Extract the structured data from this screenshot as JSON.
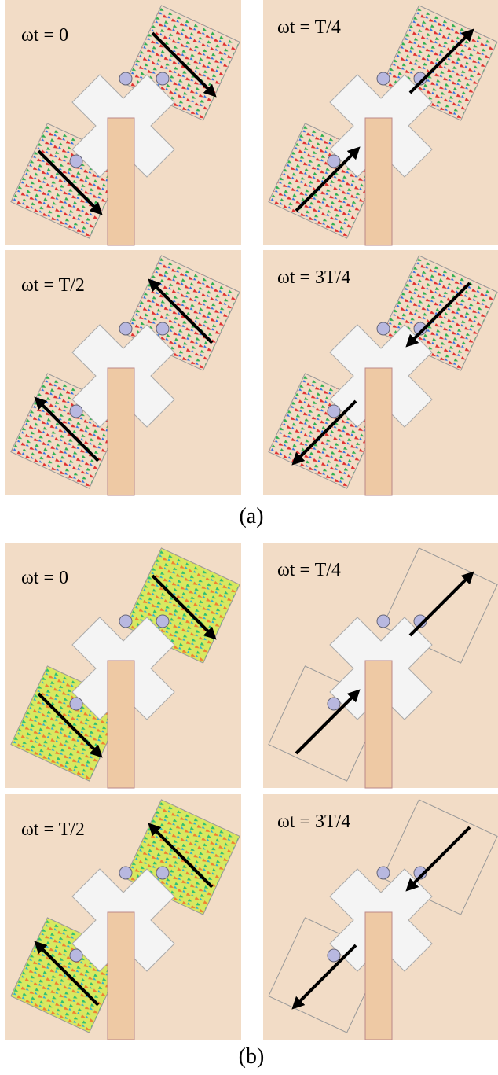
{
  "figure": {
    "parts": [
      {
        "caption": "(a)",
        "panels": [
          {
            "label": "ωt = 0"
          },
          {
            "label": "ωt = T/4"
          },
          {
            "label": "ωt = T/2"
          },
          {
            "label": "ωt = 3T/4"
          }
        ]
      },
      {
        "caption": "(b)",
        "panels": [
          {
            "label": "ωt = 0"
          },
          {
            "label": "ωt = T/4"
          },
          {
            "label": "ωt = T/2"
          },
          {
            "label": "ωt = 3T/4"
          }
        ]
      }
    ]
  }
}
